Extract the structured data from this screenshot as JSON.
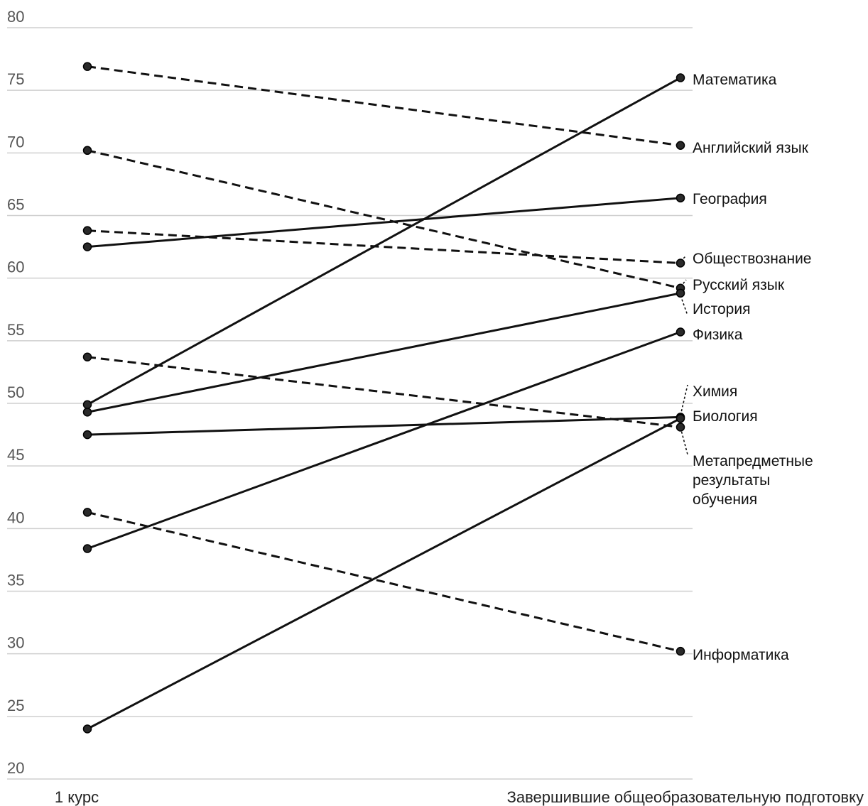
{
  "chart_data": {
    "type": "line",
    "title": "",
    "xlabel": "",
    "ylabel": "",
    "categories": [
      "1 курс",
      "Завершившие общеобразовательную подготовку"
    ],
    "ylim": [
      20,
      80
    ],
    "yticks": [
      20,
      25,
      30,
      35,
      40,
      45,
      50,
      55,
      60,
      65,
      70,
      75,
      80
    ],
    "grid": true,
    "legend": "direct labels at right",
    "colors": {
      "line": "#111111",
      "grid": "#cfcfcf",
      "tick": "#555555"
    },
    "series": [
      {
        "name": "Математика",
        "values": [
          49.9,
          76.0
        ],
        "style": "solid"
      },
      {
        "name": "Английский язык",
        "values": [
          76.9,
          70.6
        ],
        "style": "dashed"
      },
      {
        "name": "География",
        "values": [
          62.5,
          66.4
        ],
        "style": "solid"
      },
      {
        "name": "Обществознание",
        "values": [
          63.8,
          61.2
        ],
        "style": "dashed"
      },
      {
        "name": "Русский язык",
        "values": [
          70.2,
          59.2
        ],
        "style": "dashed"
      },
      {
        "name": "История",
        "values": [
          49.3,
          58.8
        ],
        "style": "solid"
      },
      {
        "name": "Физика",
        "values": [
          38.4,
          55.7
        ],
        "style": "solid"
      },
      {
        "name": "Химия",
        "values": [
          47.5,
          48.9
        ],
        "style": "solid"
      },
      {
        "name": "Биология",
        "values": [
          24.0,
          48.8
        ],
        "style": "solid"
      },
      {
        "name": "Метапредметные результаты обучения",
        "values": [
          53.7,
          48.1
        ],
        "style": "dashed"
      },
      {
        "name": "Информатика",
        "values": [
          41.3,
          30.2
        ],
        "style": "dashed"
      }
    ]
  },
  "label_lines": {
    "Математика": [
      "Математика"
    ],
    "Английский язык": [
      "Английский язык"
    ],
    "География": [
      "География"
    ],
    "Обществознание": [
      "Обществознание"
    ],
    "Русский язык": [
      "Русский язык"
    ],
    "История": [
      "История"
    ],
    "Физика": [
      "Физика"
    ],
    "Химия": [
      "Химия"
    ],
    "Биология": [
      "Биология"
    ],
    "Метапредметные результаты обучения": [
      "Метапредметные",
      "результаты",
      "обучения"
    ],
    "Информатика": [
      "Информатика"
    ]
  }
}
